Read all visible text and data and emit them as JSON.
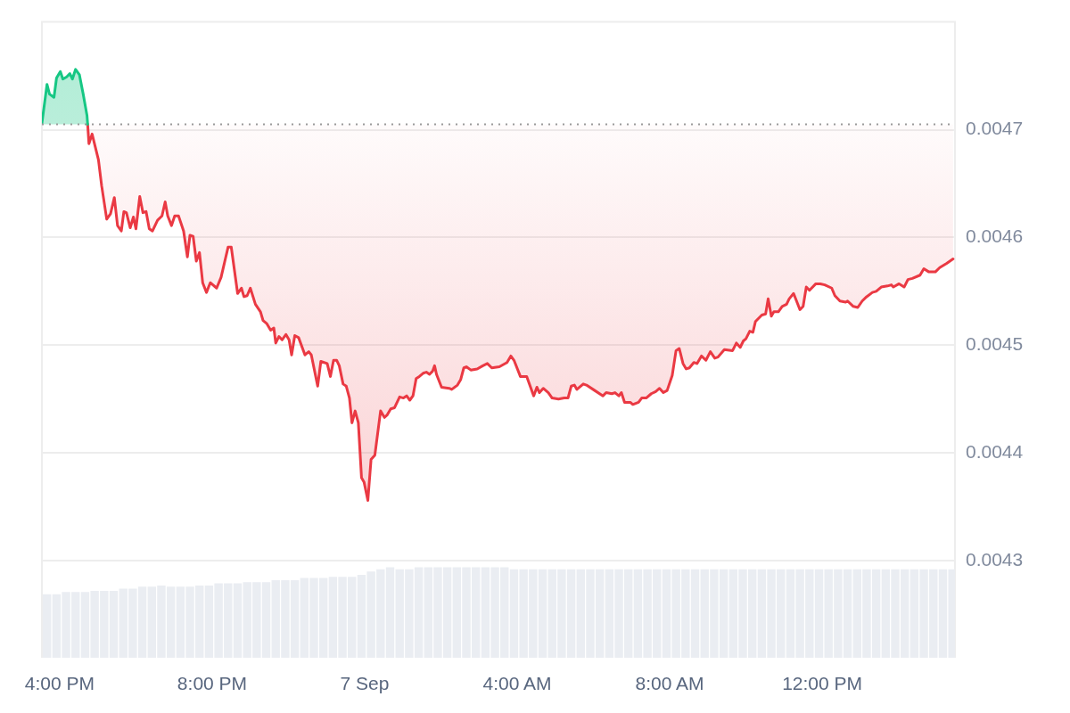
{
  "chart_data": {
    "type": "line",
    "xlim": [
      "--09-06T15:32",
      "--09-07T15:29"
    ],
    "xticks": [
      {
        "value": "--09-06T16:00",
        "label": "4:00 PM"
      },
      {
        "value": "--09-06T20:00",
        "label": "8:00 PM"
      },
      {
        "value": "--09-07T00:00",
        "label": "7 Sep"
      },
      {
        "value": "--09-07T04:00",
        "label": "4:00 AM"
      },
      {
        "value": "--09-07T08:00",
        "label": "8:00 AM"
      },
      {
        "value": "--09-07T12:00",
        "label": "12:00 PM"
      }
    ],
    "ylim": [
      0.00421,
      0.0048
    ],
    "yticks": [
      0.0043,
      0.0044,
      0.0045,
      0.0046,
      0.0047
    ],
    "grid": "y",
    "marker": "none",
    "ref_lines": [
      {
        "axis": "y",
        "value": 0.004705,
        "line_style": "dotted",
        "color": "#9a9a9a"
      }
    ],
    "series": [
      {
        "type": "bar",
        "color": "#eaedf2",
        "x": [
          "--09-06T15:40",
          "--09-06T15:55",
          "--09-06T16:10",
          "--09-06T16:25",
          "--09-06T16:40",
          "--09-06T16:55",
          "--09-06T17:10",
          "--09-06T17:25",
          "--09-06T17:40",
          "--09-06T17:55",
          "--09-06T18:10",
          "--09-06T18:25",
          "--09-06T18:40",
          "--09-06T18:55",
          "--09-06T19:10",
          "--09-06T19:25",
          "--09-06T19:40",
          "--09-06T19:55",
          "--09-06T20:10",
          "--09-06T20:25",
          "--09-06T20:40",
          "--09-06T20:55",
          "--09-06T21:10",
          "--09-06T21:25",
          "--09-06T21:40",
          "--09-06T21:55",
          "--09-06T22:10",
          "--09-06T22:25",
          "--09-06T22:40",
          "--09-06T22:55",
          "--09-06T23:10",
          "--09-06T23:25",
          "--09-06T23:40",
          "--09-06T23:55",
          "--09-07T00:10",
          "--09-07T00:25",
          "--09-07T00:40",
          "--09-07T00:55",
          "--09-07T01:10",
          "--09-07T01:25",
          "--09-07T01:40",
          "--09-07T01:55",
          "--09-07T02:10",
          "--09-07T02:25",
          "--09-07T02:40",
          "--09-07T02:55",
          "--09-07T03:10",
          "--09-07T03:25",
          "--09-07T03:40",
          "--09-07T03:55",
          "--09-07T04:10",
          "--09-07T04:25",
          "--09-07T04:40",
          "--09-07T04:55",
          "--09-07T05:10",
          "--09-07T05:25",
          "--09-07T05:40",
          "--09-07T05:55",
          "--09-07T06:10",
          "--09-07T06:25",
          "--09-07T06:40",
          "--09-07T06:55",
          "--09-07T07:10",
          "--09-07T07:25",
          "--09-07T07:40",
          "--09-07T07:55",
          "--09-07T08:10",
          "--09-07T08:25",
          "--09-07T08:40",
          "--09-07T08:55",
          "--09-07T09:10",
          "--09-07T09:25",
          "--09-07T09:40",
          "--09-07T09:55",
          "--09-07T10:10",
          "--09-07T10:25",
          "--09-07T10:40",
          "--09-07T10:55",
          "--09-07T11:10",
          "--09-07T11:25",
          "--09-07T11:40",
          "--09-07T11:55",
          "--09-07T12:10",
          "--09-07T12:25",
          "--09-07T12:40",
          "--09-07T12:55",
          "--09-07T13:10",
          "--09-07T13:25",
          "--09-07T13:40",
          "--09-07T13:55",
          "--09-07T14:10",
          "--09-07T14:25",
          "--09-07T14:40",
          "--09-07T14:55",
          "--09-07T15:10",
          "--09-07T15:25"
        ],
        "values": [
          0.004269,
          0.004269,
          0.004271,
          0.004271,
          0.004271,
          0.004272,
          0.004272,
          0.004272,
          0.004274,
          0.004274,
          0.004276,
          0.004276,
          0.004277,
          0.004276,
          0.004276,
          0.004276,
          0.004277,
          0.004277,
          0.004279,
          0.004279,
          0.004279,
          0.00428,
          0.00428,
          0.00428,
          0.004282,
          0.004282,
          0.004282,
          0.004284,
          0.004284,
          0.004284,
          0.004285,
          0.004285,
          0.004285,
          0.004287,
          0.00429,
          0.004292,
          0.004294,
          0.004292,
          0.004292,
          0.004294,
          0.004294,
          0.004294,
          0.004294,
          0.004294,
          0.004294,
          0.004294,
          0.004294,
          0.004294,
          0.004294,
          0.004292,
          0.004292,
          0.004292,
          0.004292,
          0.004292,
          0.004292,
          0.004292,
          0.004292,
          0.004292,
          0.004292,
          0.004292,
          0.004292,
          0.004292,
          0.004292,
          0.004292,
          0.004292,
          0.004292,
          0.004292,
          0.004292,
          0.004292,
          0.004292,
          0.004292,
          0.004292,
          0.004292,
          0.004292,
          0.004292,
          0.004292,
          0.004292,
          0.004292,
          0.004292,
          0.004292,
          0.004292,
          0.004292,
          0.004292,
          0.004292,
          0.004292,
          0.004292,
          0.004292,
          0.004292,
          0.004292,
          0.004292,
          0.004292,
          0.004292,
          0.004292,
          0.004292,
          0.004292,
          0.004292
        ]
      },
      {
        "color": "#16c784",
        "x": [
          "--09-06T15:32",
          "--09-06T15:40",
          "--09-06T15:44",
          "--09-06T15:51",
          "--09-06T15:55",
          "--09-06T16:01",
          "--09-06T16:05",
          "--09-06T16:11",
          "--09-06T16:16",
          "--09-06T16:20",
          "--09-06T16:25",
          "--09-06T16:31",
          "--09-06T16:37",
          "--09-06T16:43",
          "--09-06T16:44"
        ],
        "values": [
          0.004706,
          0.004742,
          0.004733,
          0.00473,
          0.004748,
          0.004754,
          0.004747,
          0.004749,
          0.004752,
          0.004747,
          0.004756,
          0.004751,
          0.004733,
          0.004713,
          0.004705
        ],
        "lower": [
          0.004705,
          0.004705,
          0.004705,
          0.004705,
          0.004705,
          0.004705,
          0.004705,
          0.004705,
          0.004705,
          0.004705,
          0.004705,
          0.004705,
          0.004705,
          0.004705,
          0.004705
        ],
        "upper": [
          0.004706,
          0.004742,
          0.004733,
          0.00473,
          0.004748,
          0.004754,
          0.004747,
          0.004749,
          0.004752,
          0.004747,
          0.004756,
          0.004751,
          0.004733,
          0.004713,
          0.004705
        ]
      },
      {
        "color": "#ea3943",
        "x": [
          "--09-06T16:44",
          "--09-06T16:46",
          "--09-06T16:51",
          "--09-06T17:01",
          "--09-06T17:06",
          "--09-06T17:14",
          "--09-06T17:20",
          "--09-06T17:26",
          "--09-06T17:31",
          "--09-06T17:37",
          "--09-06T17:41",
          "--09-06T17:45",
          "--09-06T17:51",
          "--09-06T17:56",
          "--09-06T18:00",
          "--09-06T18:06",
          "--09-06T18:11",
          "--09-06T18:16",
          "--09-06T18:21",
          "--09-06T18:26",
          "--09-06T18:34",
          "--09-06T18:41",
          "--09-06T18:46",
          "--09-06T18:50",
          "--09-06T18:56",
          "--09-06T19:01",
          "--09-06T19:07",
          "--09-06T19:15",
          "--09-06T19:21",
          "--09-06T19:25",
          "--09-06T19:30",
          "--09-06T19:35",
          "--09-06T19:40",
          "--09-06T19:45",
          "--09-06T19:51",
          "--09-06T19:57",
          "--09-06T20:07",
          "--09-06T20:14",
          "--09-06T20:25",
          "--09-06T20:30",
          "--09-06T20:40",
          "--09-06T20:46",
          "--09-06T20:50",
          "--09-06T20:55",
          "--09-06T21:00",
          "--09-06T21:08",
          "--09-06T21:16",
          "--09-06T21:20",
          "--09-06T21:26",
          "--09-06T21:32",
          "--09-06T21:37",
          "--09-06T21:40",
          "--09-06T21:45",
          "--09-06T21:50",
          "--09-06T21:56",
          "--09-06T22:01",
          "--09-06T22:05",
          "--09-06T22:10",
          "--09-06T22:16",
          "--09-06T22:26",
          "--09-06T22:32",
          "--09-06T22:36",
          "--09-06T22:46",
          "--09-06T22:51",
          "--09-06T23:01",
          "--09-06T23:06",
          "--09-06T23:11",
          "--09-06T23:16",
          "--09-06T23:20",
          "--09-06T23:26",
          "--09-06T23:31",
          "--09-06T23:36",
          "--09-06T23:40",
          "--09-06T23:45",
          "--09-06T23:50",
          "--09-06T23:55",
          "--09-06T23:59",
          "--09-07T00:05",
          "--09-07T00:10",
          "--09-07T00:16",
          "--09-07T00:25",
          "--09-07T00:31",
          "--09-07T00:35",
          "--09-07T00:41",
          "--09-07T00:47",
          "--09-07T00:55",
          "--09-07T01:01",
          "--09-07T01:06",
          "--09-07T01:11",
          "--09-07T01:16",
          "--09-07T01:21",
          "--09-07T01:26",
          "--09-07T01:32",
          "--09-07T01:37",
          "--09-07T01:42",
          "--09-07T01:47",
          "--09-07T01:50",
          "--09-07T01:53",
          "--09-07T02:01",
          "--09-07T02:13",
          "--09-07T02:17",
          "--09-07T02:26",
          "--09-07T02:31",
          "--09-07T02:36",
          "--09-07T02:40",
          "--09-07T02:47",
          "--09-07T02:57",
          "--09-07T03:06",
          "--09-07T03:13",
          "--09-07T03:20",
          "--09-07T03:32",
          "--09-07T03:44",
          "--09-07T03:50",
          "--09-07T03:55",
          "--09-07T04:05",
          "--09-07T04:15",
          "--09-07T04:26",
          "--09-07T04:31",
          "--09-07T04:35",
          "--09-07T04:41",
          "--09-07T04:49",
          "--09-07T04:55",
          "--09-07T05:05",
          "--09-07T05:14",
          "--09-07T05:20",
          "--09-07T05:25",
          "--09-07T05:30",
          "--09-07T05:34",
          "--09-07T05:44",
          "--09-07T05:49",
          "--09-07T06:02",
          "--09-07T06:15",
          "--09-07T06:20",
          "--09-07T06:29",
          "--09-07T06:34",
          "--09-07T06:40",
          "--09-07T06:44",
          "--09-07T06:49",
          "--09-07T06:58",
          "--09-07T07:02",
          "--09-07T07:11",
          "--09-07T07:16",
          "--09-07T07:23",
          "--09-07T07:31",
          "--09-07T07:38",
          "--09-07T07:44",
          "--09-07T07:50",
          "--09-07T07:56",
          "--09-07T08:04",
          "--09-07T08:10",
          "--09-07T08:15",
          "--09-07T08:21",
          "--09-07T08:26",
          "--09-07T08:31",
          "--09-07T08:38",
          "--09-07T08:43",
          "--09-07T08:50",
          "--09-07T08:57",
          "--09-07T09:04",
          "--09-07T09:11",
          "--09-07T09:16",
          "--09-07T09:26",
          "--09-07T09:39",
          "--09-07T09:45",
          "--09-07T09:51",
          "--09-07T09:56",
          "--09-07T10:00",
          "--09-07T10:06",
          "--09-07T10:11",
          "--09-07T10:15",
          "--09-07T10:25",
          "--09-07T10:31",
          "--09-07T10:35",
          "--09-07T10:40",
          "--09-07T10:44",
          "--09-07T10:51",
          "--09-07T10:57",
          "--09-07T11:04",
          "--09-07T11:08",
          "--09-07T11:15",
          "--09-07T11:25",
          "--09-07T11:30",
          "--09-07T11:35",
          "--09-07T11:40",
          "--09-07T11:50",
          "--09-07T11:57",
          "--09-07T12:04",
          "--09-07T12:15",
          "--09-07T12:20",
          "--09-07T12:28",
          "--09-07T12:37",
          "--09-07T12:40",
          "--09-07T12:49",
          "--09-07T12:56",
          "--09-07T13:03",
          "--09-07T13:10",
          "--09-07T13:19",
          "--09-07T13:25",
          "--09-07T13:33",
          "--09-07T13:43",
          "--09-07T13:49",
          "--09-07T13:52",
          "--09-07T14:01",
          "--09-07T14:09",
          "--09-07T14:15",
          "--09-07T14:22",
          "--09-07T14:34",
          "--09-07T14:40",
          "--09-07T14:48",
          "--09-07T14:58",
          "--09-07T15:05",
          "--09-07T15:16",
          "--09-07T15:26"
        ],
        "values": [
          0.004705,
          0.004687,
          0.004696,
          0.004672,
          0.004648,
          0.004617,
          0.004622,
          0.004637,
          0.004611,
          0.004606,
          0.004624,
          0.004623,
          0.004609,
          0.004619,
          0.004608,
          0.004638,
          0.004623,
          0.004624,
          0.004608,
          0.004606,
          0.004616,
          0.00462,
          0.004633,
          0.00462,
          0.004611,
          0.00462,
          0.00462,
          0.004606,
          0.004582,
          0.004602,
          0.004601,
          0.004578,
          0.004586,
          0.004558,
          0.004549,
          0.004558,
          0.004553,
          0.004563,
          0.004591,
          0.004591,
          0.004548,
          0.004553,
          0.004545,
          0.004546,
          0.004553,
          0.004538,
          0.004531,
          0.004523,
          0.00452,
          0.004514,
          0.004516,
          0.004502,
          0.004508,
          0.004505,
          0.00451,
          0.004505,
          0.004491,
          0.004509,
          0.004507,
          0.004491,
          0.004494,
          0.004491,
          0.004462,
          0.004485,
          0.004483,
          0.004471,
          0.004486,
          0.004486,
          0.004481,
          0.004464,
          0.004462,
          0.004451,
          0.004428,
          0.004439,
          0.004428,
          0.004377,
          0.004373,
          0.004356,
          0.004394,
          0.004398,
          0.004439,
          0.004433,
          0.004435,
          0.004441,
          0.004442,
          0.004452,
          0.004451,
          0.004453,
          0.004449,
          0.004453,
          0.004469,
          0.004471,
          0.004474,
          0.004475,
          0.004473,
          0.004476,
          0.004481,
          0.004473,
          0.004461,
          0.00446,
          0.004459,
          0.004463,
          0.004468,
          0.004479,
          0.00448,
          0.004477,
          0.004478,
          0.004481,
          0.004483,
          0.004479,
          0.00448,
          0.004484,
          0.00449,
          0.004486,
          0.004471,
          0.004471,
          0.004453,
          0.004461,
          0.004456,
          0.00446,
          0.004456,
          0.004451,
          0.00445,
          0.004451,
          0.004451,
          0.004462,
          0.004463,
          0.004459,
          0.004464,
          0.004463,
          0.004458,
          0.004453,
          0.004456,
          0.004455,
          0.004456,
          0.004453,
          0.004456,
          0.004447,
          0.004447,
          0.004445,
          0.004447,
          0.004451,
          0.004451,
          0.004455,
          0.004457,
          0.00446,
          0.004456,
          0.004458,
          0.004472,
          0.004495,
          0.004497,
          0.004483,
          0.004478,
          0.004479,
          0.004484,
          0.004483,
          0.00449,
          0.004486,
          0.004494,
          0.004488,
          0.004489,
          0.004496,
          0.004495,
          0.004502,
          0.004498,
          0.004504,
          0.004506,
          0.004513,
          0.004512,
          0.004522,
          0.004528,
          0.004529,
          0.004543,
          0.004527,
          0.004531,
          0.004531,
          0.004536,
          0.004538,
          0.004543,
          0.004548,
          0.004533,
          0.004536,
          0.004554,
          0.004551,
          0.004557,
          0.004557,
          0.004556,
          0.004553,
          0.004546,
          0.004541,
          0.00454,
          0.004541,
          0.004536,
          0.004535,
          0.004541,
          0.004545,
          0.004549,
          0.00455,
          0.004554,
          0.004555,
          0.004556,
          0.004554,
          0.004557,
          0.004554,
          0.004561,
          0.004562,
          0.004565,
          0.004571,
          0.004568,
          0.004568,
          0.004572,
          0.004576,
          0.00458
        ],
        "lower": [
          0.004705,
          0.004687,
          0.004696,
          0.004672,
          0.004648,
          0.004617,
          0.004622,
          0.004637,
          0.004611,
          0.004606,
          0.004624,
          0.004623,
          0.004609,
          0.004619,
          0.004608,
          0.004638,
          0.004623,
          0.004624,
          0.004608,
          0.004606,
          0.004616,
          0.00462,
          0.004633,
          0.00462,
          0.004611,
          0.00462,
          0.00462,
          0.004606,
          0.004582,
          0.004602,
          0.004601,
          0.004578,
          0.004586,
          0.004558,
          0.004549,
          0.004558,
          0.004553,
          0.004563,
          0.004591,
          0.004591,
          0.004548,
          0.004553,
          0.004545,
          0.004546,
          0.004553,
          0.004538,
          0.004531,
          0.004523,
          0.00452,
          0.004514,
          0.004516,
          0.004502,
          0.004508,
          0.004505,
          0.00451,
          0.004505,
          0.004491,
          0.004509,
          0.004507,
          0.004491,
          0.004494,
          0.004491,
          0.004462,
          0.004485,
          0.004483,
          0.004471,
          0.004486,
          0.004486,
          0.004481,
          0.004464,
          0.004462,
          0.004451,
          0.004428,
          0.004439,
          0.004428,
          0.004377,
          0.004373,
          0.004356,
          0.004394,
          0.004398,
          0.004439,
          0.004433,
          0.004435,
          0.004441,
          0.004442,
          0.004452,
          0.004451,
          0.004453,
          0.004449,
          0.004453,
          0.004469,
          0.004471,
          0.004474,
          0.004475,
          0.004473,
          0.004476,
          0.004481,
          0.004473,
          0.004461,
          0.00446,
          0.004459,
          0.004463,
          0.004468,
          0.004479,
          0.00448,
          0.004477,
          0.004478,
          0.004481,
          0.004483,
          0.004479,
          0.00448,
          0.004484,
          0.00449,
          0.004486,
          0.004471,
          0.004471,
          0.004453,
          0.004461,
          0.004456,
          0.00446,
          0.004456,
          0.004451,
          0.00445,
          0.004451,
          0.004451,
          0.004462,
          0.004463,
          0.004459,
          0.004464,
          0.004463,
          0.004458,
          0.004453,
          0.004456,
          0.004455,
          0.004456,
          0.004453,
          0.004456,
          0.004447,
          0.004447,
          0.004445,
          0.004447,
          0.004451,
          0.004451,
          0.004455,
          0.004457,
          0.00446,
          0.004456,
          0.004458,
          0.004472,
          0.004495,
          0.004497,
          0.004483,
          0.004478,
          0.004479,
          0.004484,
          0.004483,
          0.00449,
          0.004486,
          0.004494,
          0.004488,
          0.004489,
          0.004496,
          0.004495,
          0.004502,
          0.004498,
          0.004504,
          0.004506,
          0.004513,
          0.004512,
          0.004522,
          0.004528,
          0.004529,
          0.004543,
          0.004527,
          0.004531,
          0.004531,
          0.004536,
          0.004538,
          0.004543,
          0.004548,
          0.004533,
          0.004536,
          0.004554,
          0.004551,
          0.004557,
          0.004557,
          0.004556,
          0.004553,
          0.004546,
          0.004541,
          0.00454,
          0.004541,
          0.004536,
          0.004535,
          0.004541,
          0.004545,
          0.004549,
          0.00455,
          0.004554,
          0.004555,
          0.004556,
          0.004554,
          0.004557,
          0.004554,
          0.004561,
          0.004562,
          0.004565,
          0.004571,
          0.004568,
          0.004568,
          0.004572,
          0.004576,
          0.00458
        ],
        "upper": [
          0.004705,
          0.004705,
          0.004705,
          0.004705,
          0.004705,
          0.004705,
          0.004705,
          0.004705,
          0.004705,
          0.004705,
          0.004705,
          0.004705,
          0.004705,
          0.004705,
          0.004705,
          0.004705,
          0.004705,
          0.004705,
          0.004705,
          0.004705,
          0.004705,
          0.004705,
          0.004705,
          0.004705,
          0.004705,
          0.004705,
          0.004705,
          0.004705,
          0.004705,
          0.004705,
          0.004705,
          0.004705,
          0.004705,
          0.004705,
          0.004705,
          0.004705,
          0.004705,
          0.004705,
          0.004705,
          0.004705,
          0.004705,
          0.004705,
          0.004705,
          0.004705,
          0.004705,
          0.004705,
          0.004705,
          0.004705,
          0.004705,
          0.004705,
          0.004705,
          0.004705,
          0.004705,
          0.004705,
          0.004705,
          0.004705,
          0.004705,
          0.004705,
          0.004705,
          0.004705,
          0.004705,
          0.004705,
          0.004705,
          0.004705,
          0.004705,
          0.004705,
          0.004705,
          0.004705,
          0.004705,
          0.004705,
          0.004705,
          0.004705,
          0.004705,
          0.004705,
          0.004705,
          0.004705,
          0.004705,
          0.004705,
          0.004705,
          0.004705,
          0.004705,
          0.004705,
          0.004705,
          0.004705,
          0.004705,
          0.004705,
          0.004705,
          0.004705,
          0.004705,
          0.004705,
          0.004705,
          0.004705,
          0.004705,
          0.004705,
          0.004705,
          0.004705,
          0.004705,
          0.004705,
          0.004705,
          0.004705,
          0.004705,
          0.004705,
          0.004705,
          0.004705,
          0.004705,
          0.004705,
          0.004705,
          0.004705,
          0.004705,
          0.004705,
          0.004705,
          0.004705,
          0.004705,
          0.004705,
          0.004705,
          0.004705,
          0.004705,
          0.004705,
          0.004705,
          0.004705,
          0.004705,
          0.004705,
          0.004705,
          0.004705,
          0.004705,
          0.004705,
          0.004705,
          0.004705,
          0.004705,
          0.004705,
          0.004705,
          0.004705,
          0.004705,
          0.004705,
          0.004705,
          0.004705,
          0.004705,
          0.004705,
          0.004705,
          0.004705,
          0.004705,
          0.004705,
          0.004705,
          0.004705,
          0.004705,
          0.004705,
          0.004705,
          0.004705,
          0.004705,
          0.004705,
          0.004705,
          0.004705,
          0.004705,
          0.004705,
          0.004705,
          0.004705,
          0.004705,
          0.004705,
          0.004705,
          0.004705,
          0.004705,
          0.004705,
          0.004705,
          0.004705,
          0.004705,
          0.004705,
          0.004705,
          0.004705,
          0.004705,
          0.004705,
          0.004705,
          0.004705,
          0.004705,
          0.004705,
          0.004705,
          0.004705,
          0.004705,
          0.004705,
          0.004705,
          0.004705,
          0.004705,
          0.004705,
          0.004705,
          0.004705,
          0.004705,
          0.004705,
          0.004705,
          0.004705,
          0.004705,
          0.004705,
          0.004705,
          0.004705,
          0.004705,
          0.004705,
          0.004705,
          0.004705,
          0.004705,
          0.004705,
          0.004705,
          0.004705,
          0.004705,
          0.004705,
          0.004705,
          0.004705,
          0.004705,
          0.004705,
          0.004705,
          0.004705,
          0.004705,
          0.004705,
          0.004705,
          0.004705,
          0.004705
        ]
      }
    ]
  }
}
